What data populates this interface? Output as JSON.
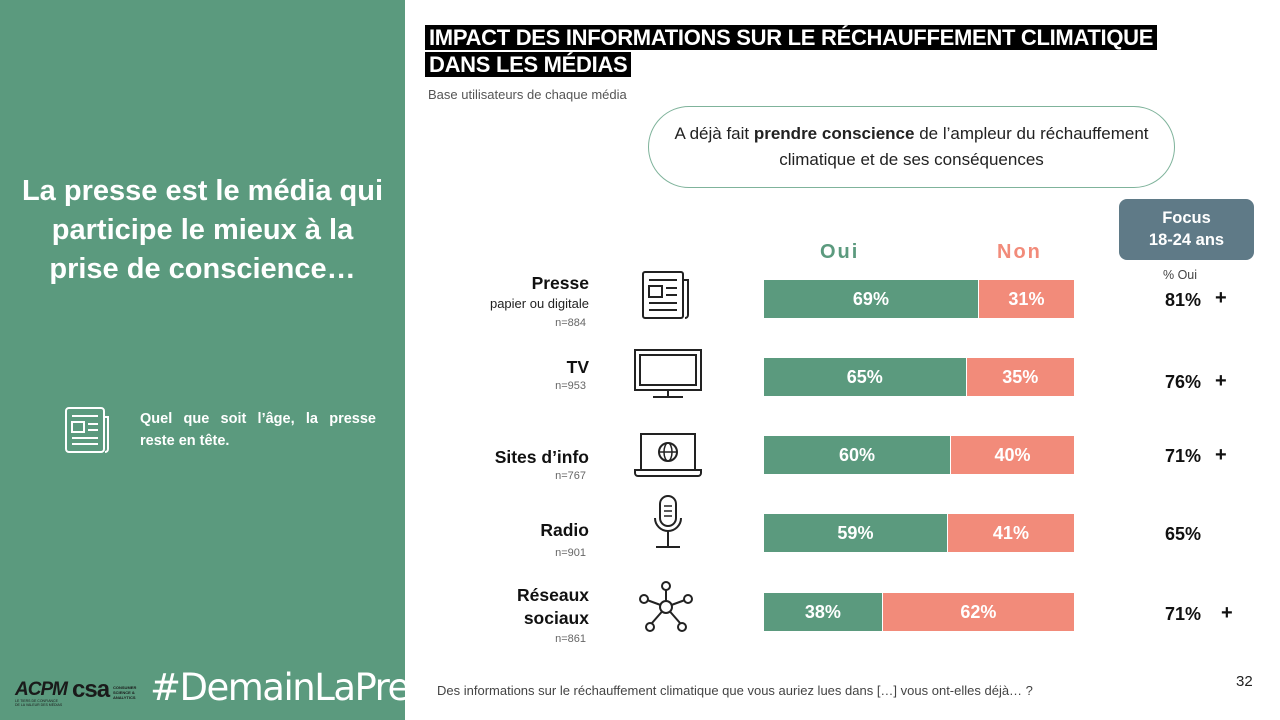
{
  "left": {
    "headline": "La presse est le média qui participe le mieux à la prise de conscience…",
    "note": "Quel que soit l’âge, la presse reste en tête.",
    "note_icon": "newspaper-icon",
    "logos": {
      "acpm": "ACPM",
      "acpm_sub": "LE TIERS DE CONFIANCE DE LA VALEUR DES MÉDIAS",
      "csa": "csa",
      "csa_sub": "CONSUMER SCIENCE & ANALYTICS"
    },
    "hashtag": "#DemainLaPresse"
  },
  "title_line1": "IMPACT DES INFORMATIONS SUR LE RÉCHAUFFEMENT CLIMATIQUE",
  "title_line2": "DANS LES MÉDIAS",
  "subtitle": "Base utilisateurs de chaque média",
  "callout": {
    "pre": "A déjà fait ",
    "bold": "prendre conscience",
    "post": " de l’ampleur du réchauffement climatique et de ses conséquences"
  },
  "focus": {
    "line1": "Focus",
    "line2": "18-24 ans",
    "sub": "% Oui"
  },
  "colors": {
    "oui": "#5b9a7e",
    "non": "#f28b7a",
    "focus": "#5f7a87"
  },
  "chart_data": {
    "type": "bar",
    "orientation": "horizontal-stacked",
    "categories": [
      "Presse",
      "TV",
      "Sites d’info",
      "Radio",
      "Réseaux sociaux"
    ],
    "series": [
      {
        "name": "Oui",
        "values": [
          69,
          65,
          60,
          59,
          38
        ]
      },
      {
        "name": "Non",
        "values": [
          31,
          35,
          40,
          41,
          62
        ]
      }
    ],
    "focus_18_24_oui": [
      81,
      76,
      71,
      65,
      71
    ]
  },
  "rows": [
    {
      "name": "Presse",
      "desc": "papier ou digitale",
      "n": "n=884",
      "icon": "newspaper-icon",
      "oui": 69,
      "non": 31,
      "oui_label": "69%",
      "non_label": "31%",
      "focus": "81%",
      "plus": "+"
    },
    {
      "name": "TV",
      "desc": "",
      "n": "n=953",
      "icon": "tv-icon",
      "oui": 65,
      "non": 35,
      "oui_label": "65%",
      "non_label": "35%",
      "focus": "76%",
      "plus": "+"
    },
    {
      "name": "Sites d’info",
      "desc": "",
      "n": "n=767",
      "icon": "laptop-globe-icon",
      "oui": 60,
      "non": 40,
      "oui_label": "60%",
      "non_label": "40%",
      "focus": "71%",
      "plus": "+"
    },
    {
      "name": "Radio",
      "desc": "",
      "n": "n=901",
      "icon": "microphone-icon",
      "oui": 59,
      "non": 41,
      "oui_label": "59%",
      "non_label": "41%",
      "focus": "65%",
      "plus": ""
    },
    {
      "name": "Réseaux sociaux",
      "name_line1": "Réseaux",
      "name_line2": "sociaux",
      "desc": "",
      "n": "n=861",
      "icon": "social-network-icon",
      "oui": 38,
      "non": 62,
      "oui_label": "38%",
      "non_label": "62%",
      "focus": "71%",
      "plus": "+"
    }
  ],
  "question": "Des informations sur le réchauffement climatique que vous auriez lues dans […] vous ont-elles déjà… ?",
  "page_number": "32"
}
